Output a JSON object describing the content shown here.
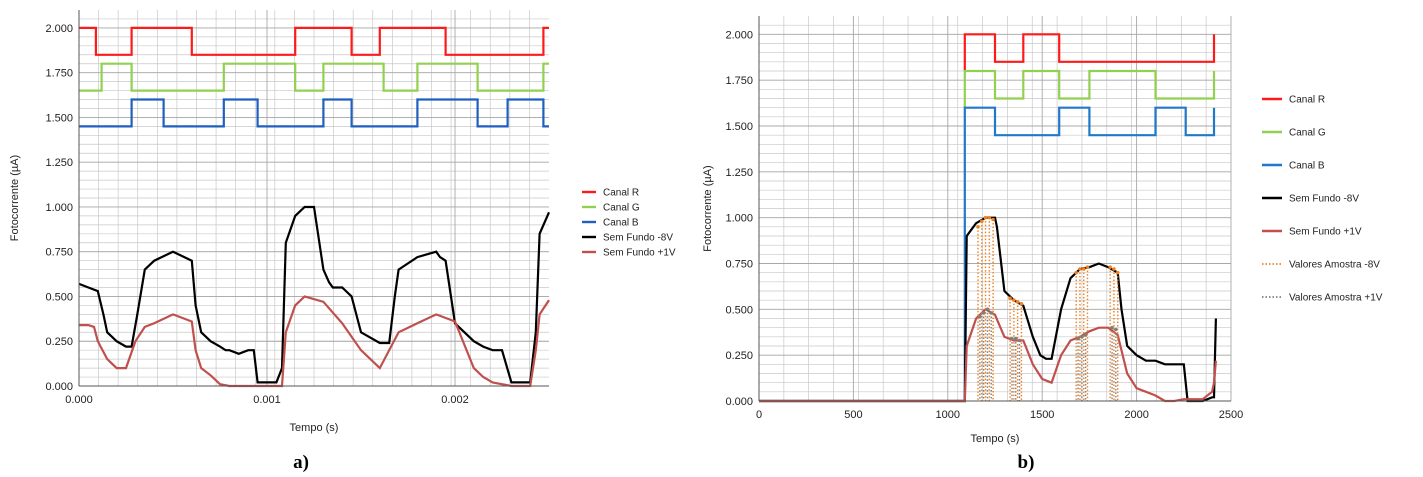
{
  "chart_data": [
    {
      "type": "line",
      "panel_label": "a)",
      "xlabel": "Tempo (s)",
      "ylabel": "Fotocorrente (µA)",
      "xlim": [
        0,
        0.0025
      ],
      "ylim": [
        0,
        2.1
      ],
      "x_ticks": [
        "0.000",
        "0.001",
        "0.002"
      ],
      "x_tick_values": [
        0,
        0.001,
        0.002
      ],
      "y_ticks": [
        "0.000",
        "0.250",
        "0.500",
        "0.750",
        "1.000",
        "1.250",
        "1.500",
        "1.750",
        "2.000"
      ],
      "y_tick_values": [
        0,
        0.25,
        0.5,
        0.75,
        1.0,
        1.25,
        1.5,
        1.75,
        2.0
      ],
      "grid": true,
      "legend_position": "right",
      "series": [
        {
          "name": "Canal R",
          "color": "#ff1a1a",
          "style": "solid",
          "x": [
            0,
            9e-05,
            9e-05,
            0.00028,
            0.00028,
            0.0006,
            0.0006,
            0.00115,
            0.00115,
            0.00145,
            0.00145,
            0.0016,
            0.0016,
            0.00195,
            0.00195,
            0.00247,
            0.00247,
            0.0025
          ],
          "y": [
            2.0,
            2.0,
            1.85,
            1.85,
            2.0,
            2.0,
            1.85,
            1.85,
            2.0,
            2.0,
            1.85,
            1.85,
            2.0,
            2.0,
            1.85,
            1.85,
            2.0,
            2.0
          ]
        },
        {
          "name": "Canal G",
          "color": "#92d050",
          "style": "solid",
          "x": [
            0,
            0.00012,
            0.00012,
            0.00028,
            0.00028,
            0.00077,
            0.00077,
            0.00115,
            0.00115,
            0.0013,
            0.0013,
            0.00162,
            0.00162,
            0.0018,
            0.0018,
            0.00212,
            0.00212,
            0.00247,
            0.00247,
            0.0025
          ],
          "y": [
            1.65,
            1.65,
            1.8,
            1.8,
            1.65,
            1.65,
            1.8,
            1.8,
            1.65,
            1.65,
            1.8,
            1.8,
            1.65,
            1.65,
            1.8,
            1.8,
            1.65,
            1.65,
            1.8,
            1.8
          ]
        },
        {
          "name": "Canal B",
          "color": "#1f5fbf",
          "style": "solid",
          "x": [
            0,
            0.00028,
            0.00028,
            0.00045,
            0.00045,
            0.00077,
            0.00077,
            0.00095,
            0.00095,
            0.0013,
            0.0013,
            0.00145,
            0.00145,
            0.0018,
            0.0018,
            0.00212,
            0.00212,
            0.00228,
            0.00228,
            0.00247,
            0.00247,
            0.0025
          ],
          "y": [
            1.45,
            1.45,
            1.6,
            1.6,
            1.45,
            1.45,
            1.6,
            1.6,
            1.45,
            1.45,
            1.6,
            1.6,
            1.45,
            1.45,
            1.6,
            1.6,
            1.45,
            1.45,
            1.6,
            1.6,
            1.45,
            1.45
          ]
        },
        {
          "name": "Sem Fundo -8V",
          "color": "#000000",
          "style": "solid",
          "x": [
            0,
            5e-05,
            0.0001,
            0.00013,
            0.00015,
            0.0002,
            0.00025,
            0.00028,
            0.00031,
            0.00035,
            0.0004,
            0.0005,
            0.0006,
            0.00062,
            0.00065,
            0.0007,
            0.00075,
            0.00078,
            0.0008,
            0.00085,
            0.0009,
            0.00093,
            0.00095,
            0.001,
            0.00105,
            0.00108,
            0.0011,
            0.00115,
            0.0012,
            0.00125,
            0.0013,
            0.00133,
            0.00135,
            0.0014,
            0.00145,
            0.0015,
            0.0016,
            0.00165,
            0.00168,
            0.0017,
            0.0018,
            0.0019,
            0.00192,
            0.00195,
            0.002,
            0.0021,
            0.00215,
            0.0022,
            0.00223,
            0.00225,
            0.0023,
            0.00235,
            0.00238,
            0.0024,
            0.00243,
            0.00245,
            0.0025
          ],
          "y": [
            0.57,
            0.55,
            0.53,
            0.4,
            0.3,
            0.25,
            0.22,
            0.22,
            0.4,
            0.65,
            0.7,
            0.75,
            0.7,
            0.45,
            0.3,
            0.25,
            0.22,
            0.2,
            0.2,
            0.18,
            0.2,
            0.2,
            0.02,
            0.02,
            0.02,
            0.1,
            0.8,
            0.95,
            1.0,
            1.0,
            0.65,
            0.58,
            0.55,
            0.55,
            0.5,
            0.3,
            0.24,
            0.24,
            0.5,
            0.65,
            0.72,
            0.75,
            0.72,
            0.7,
            0.35,
            0.25,
            0.22,
            0.2,
            0.2,
            0.2,
            0.02,
            0.02,
            0.02,
            0.02,
            0.3,
            0.85,
            0.97
          ]
        },
        {
          "name": "Sem Fundo +1V",
          "color": "#c0504d",
          "style": "solid",
          "x": [
            0,
            5e-05,
            8e-05,
            0.0001,
            0.00015,
            0.0002,
            0.00025,
            0.0003,
            0.00035,
            0.0004,
            0.0005,
            0.0006,
            0.00062,
            0.00065,
            0.0007,
            0.00075,
            0.0008,
            0.0009,
            0.00095,
            0.001,
            0.00108,
            0.0011,
            0.00115,
            0.0012,
            0.0013,
            0.0014,
            0.0015,
            0.0016,
            0.0017,
            0.0018,
            0.0019,
            0.002,
            0.0021,
            0.00215,
            0.0022,
            0.0023,
            0.00238,
            0.0024,
            0.00243,
            0.00245,
            0.0025
          ],
          "y": [
            0.34,
            0.34,
            0.33,
            0.25,
            0.15,
            0.1,
            0.1,
            0.25,
            0.33,
            0.35,
            0.4,
            0.36,
            0.2,
            0.1,
            0.06,
            0.01,
            0.0,
            0.0,
            0.0,
            0.0,
            0.0,
            0.3,
            0.45,
            0.5,
            0.47,
            0.35,
            0.2,
            0.1,
            0.3,
            0.35,
            0.4,
            0.36,
            0.1,
            0.05,
            0.02,
            0.0,
            0.0,
            0.0,
            0.2,
            0.4,
            0.48
          ]
        }
      ]
    },
    {
      "type": "line",
      "panel_label": "b)",
      "xlabel": "Tempo (s)",
      "ylabel": "Fotocorrente (µA)",
      "xlim": [
        0,
        2500
      ],
      "ylim": [
        0,
        2.1
      ],
      "x_ticks": [
        "0",
        "500",
        "1000",
        "1500",
        "2000",
        "2500"
      ],
      "x_tick_values": [
        0,
        500,
        1000,
        1500,
        2000,
        2500
      ],
      "y_ticks": [
        "0.000",
        "0.250",
        "0.500",
        "0.750",
        "1.000",
        "1.250",
        "1.500",
        "1.750",
        "2.000"
      ],
      "y_tick_values": [
        0,
        0.25,
        0.5,
        0.75,
        1.0,
        1.25,
        1.5,
        1.75,
        2.0
      ],
      "grid": true,
      "legend_position": "right",
      "series": [
        {
          "name": "Canal R",
          "color": "#ff1a1a",
          "style": "solid",
          "x": [
            1090,
            1090,
            1250,
            1250,
            1400,
            1400,
            1590,
            1590,
            1920,
            1920,
            2410,
            2410
          ],
          "y": [
            1.8,
            2.0,
            2.0,
            1.85,
            1.85,
            2.0,
            2.0,
            1.85,
            1.85,
            1.85,
            1.85,
            2.0
          ]
        },
        {
          "name": "Canal G",
          "color": "#92d050",
          "style": "solid",
          "x": [
            1090,
            1090,
            1250,
            1250,
            1400,
            1400,
            1590,
            1590,
            1750,
            1750,
            2100,
            2100,
            2410,
            2410
          ],
          "y": [
            1.6,
            1.8,
            1.8,
            1.65,
            1.65,
            1.8,
            1.8,
            1.65,
            1.65,
            1.8,
            1.8,
            1.65,
            1.65,
            1.8
          ]
        },
        {
          "name": "Canal B",
          "color": "#1f78c8",
          "style": "solid",
          "x": [
            0,
            1090,
            1090,
            1250,
            1250,
            1590,
            1590,
            1750,
            1750,
            2100,
            2100,
            2260,
            2260,
            2410,
            2410
          ],
          "y": [
            0,
            0,
            1.6,
            1.6,
            1.45,
            1.45,
            1.6,
            1.6,
            1.45,
            1.45,
            1.6,
            1.6,
            1.45,
            1.45,
            1.6
          ]
        },
        {
          "name": "Sem Fundo -8V",
          "color": "#000000",
          "style": "solid",
          "x": [
            0,
            1090,
            1100,
            1150,
            1200,
            1250,
            1260,
            1300,
            1350,
            1400,
            1450,
            1490,
            1520,
            1550,
            1600,
            1650,
            1700,
            1750,
            1800,
            1850,
            1900,
            1920,
            1950,
            2000,
            2050,
            2100,
            2150,
            2200,
            2250,
            2270,
            2300,
            2350,
            2400,
            2410,
            2420
          ],
          "y": [
            0,
            0,
            0.9,
            0.97,
            1.0,
            1.0,
            0.95,
            0.6,
            0.55,
            0.52,
            0.35,
            0.25,
            0.23,
            0.23,
            0.5,
            0.67,
            0.72,
            0.73,
            0.75,
            0.73,
            0.7,
            0.5,
            0.3,
            0.25,
            0.22,
            0.22,
            0.2,
            0.2,
            0.2,
            0.0,
            0.0,
            0.0,
            0.02,
            0.02,
            0.45
          ]
        },
        {
          "name": "Sem Fundo +1V",
          "color": "#c0504d",
          "style": "solid",
          "x": [
            0,
            1090,
            1100,
            1150,
            1200,
            1250,
            1300,
            1350,
            1400,
            1450,
            1500,
            1550,
            1600,
            1650,
            1700,
            1750,
            1800,
            1850,
            1900,
            1950,
            2000,
            2050,
            2100,
            2150,
            2200,
            2250,
            2300,
            2350,
            2400,
            2410,
            2420
          ],
          "y": [
            0,
            0,
            0.3,
            0.45,
            0.5,
            0.47,
            0.35,
            0.33,
            0.33,
            0.2,
            0.12,
            0.1,
            0.25,
            0.33,
            0.35,
            0.38,
            0.4,
            0.4,
            0.36,
            0.15,
            0.07,
            0.05,
            0.03,
            0.0,
            0.0,
            0.01,
            0.01,
            0.01,
            0.05,
            0.1,
            0.22
          ]
        },
        {
          "name": "Valores Amostra -8V",
          "color": "#f08020",
          "style": "dotted",
          "drop_x": [
            1160,
            1180,
            1200,
            1220,
            1240,
            1330,
            1350,
            1370,
            1390,
            1680,
            1700,
            1720,
            1740,
            1860,
            1880,
            1900
          ],
          "drop_y": [
            0.95,
            0.98,
            1.0,
            1.0,
            0.99,
            0.56,
            0.55,
            0.54,
            0.53,
            0.7,
            0.72,
            0.72,
            0.73,
            0.73,
            0.72,
            0.7
          ]
        },
        {
          "name": "Valores Amostra +1V",
          "color": "#7f7f7f",
          "style": "dotted",
          "drop_x": [
            1170,
            1190,
            1210,
            1230,
            1340,
            1360,
            1380,
            1690,
            1710,
            1730,
            1870,
            1890
          ],
          "drop_y": [
            0.46,
            0.48,
            0.5,
            0.48,
            0.34,
            0.34,
            0.33,
            0.34,
            0.35,
            0.36,
            0.4,
            0.39
          ]
        }
      ]
    }
  ]
}
